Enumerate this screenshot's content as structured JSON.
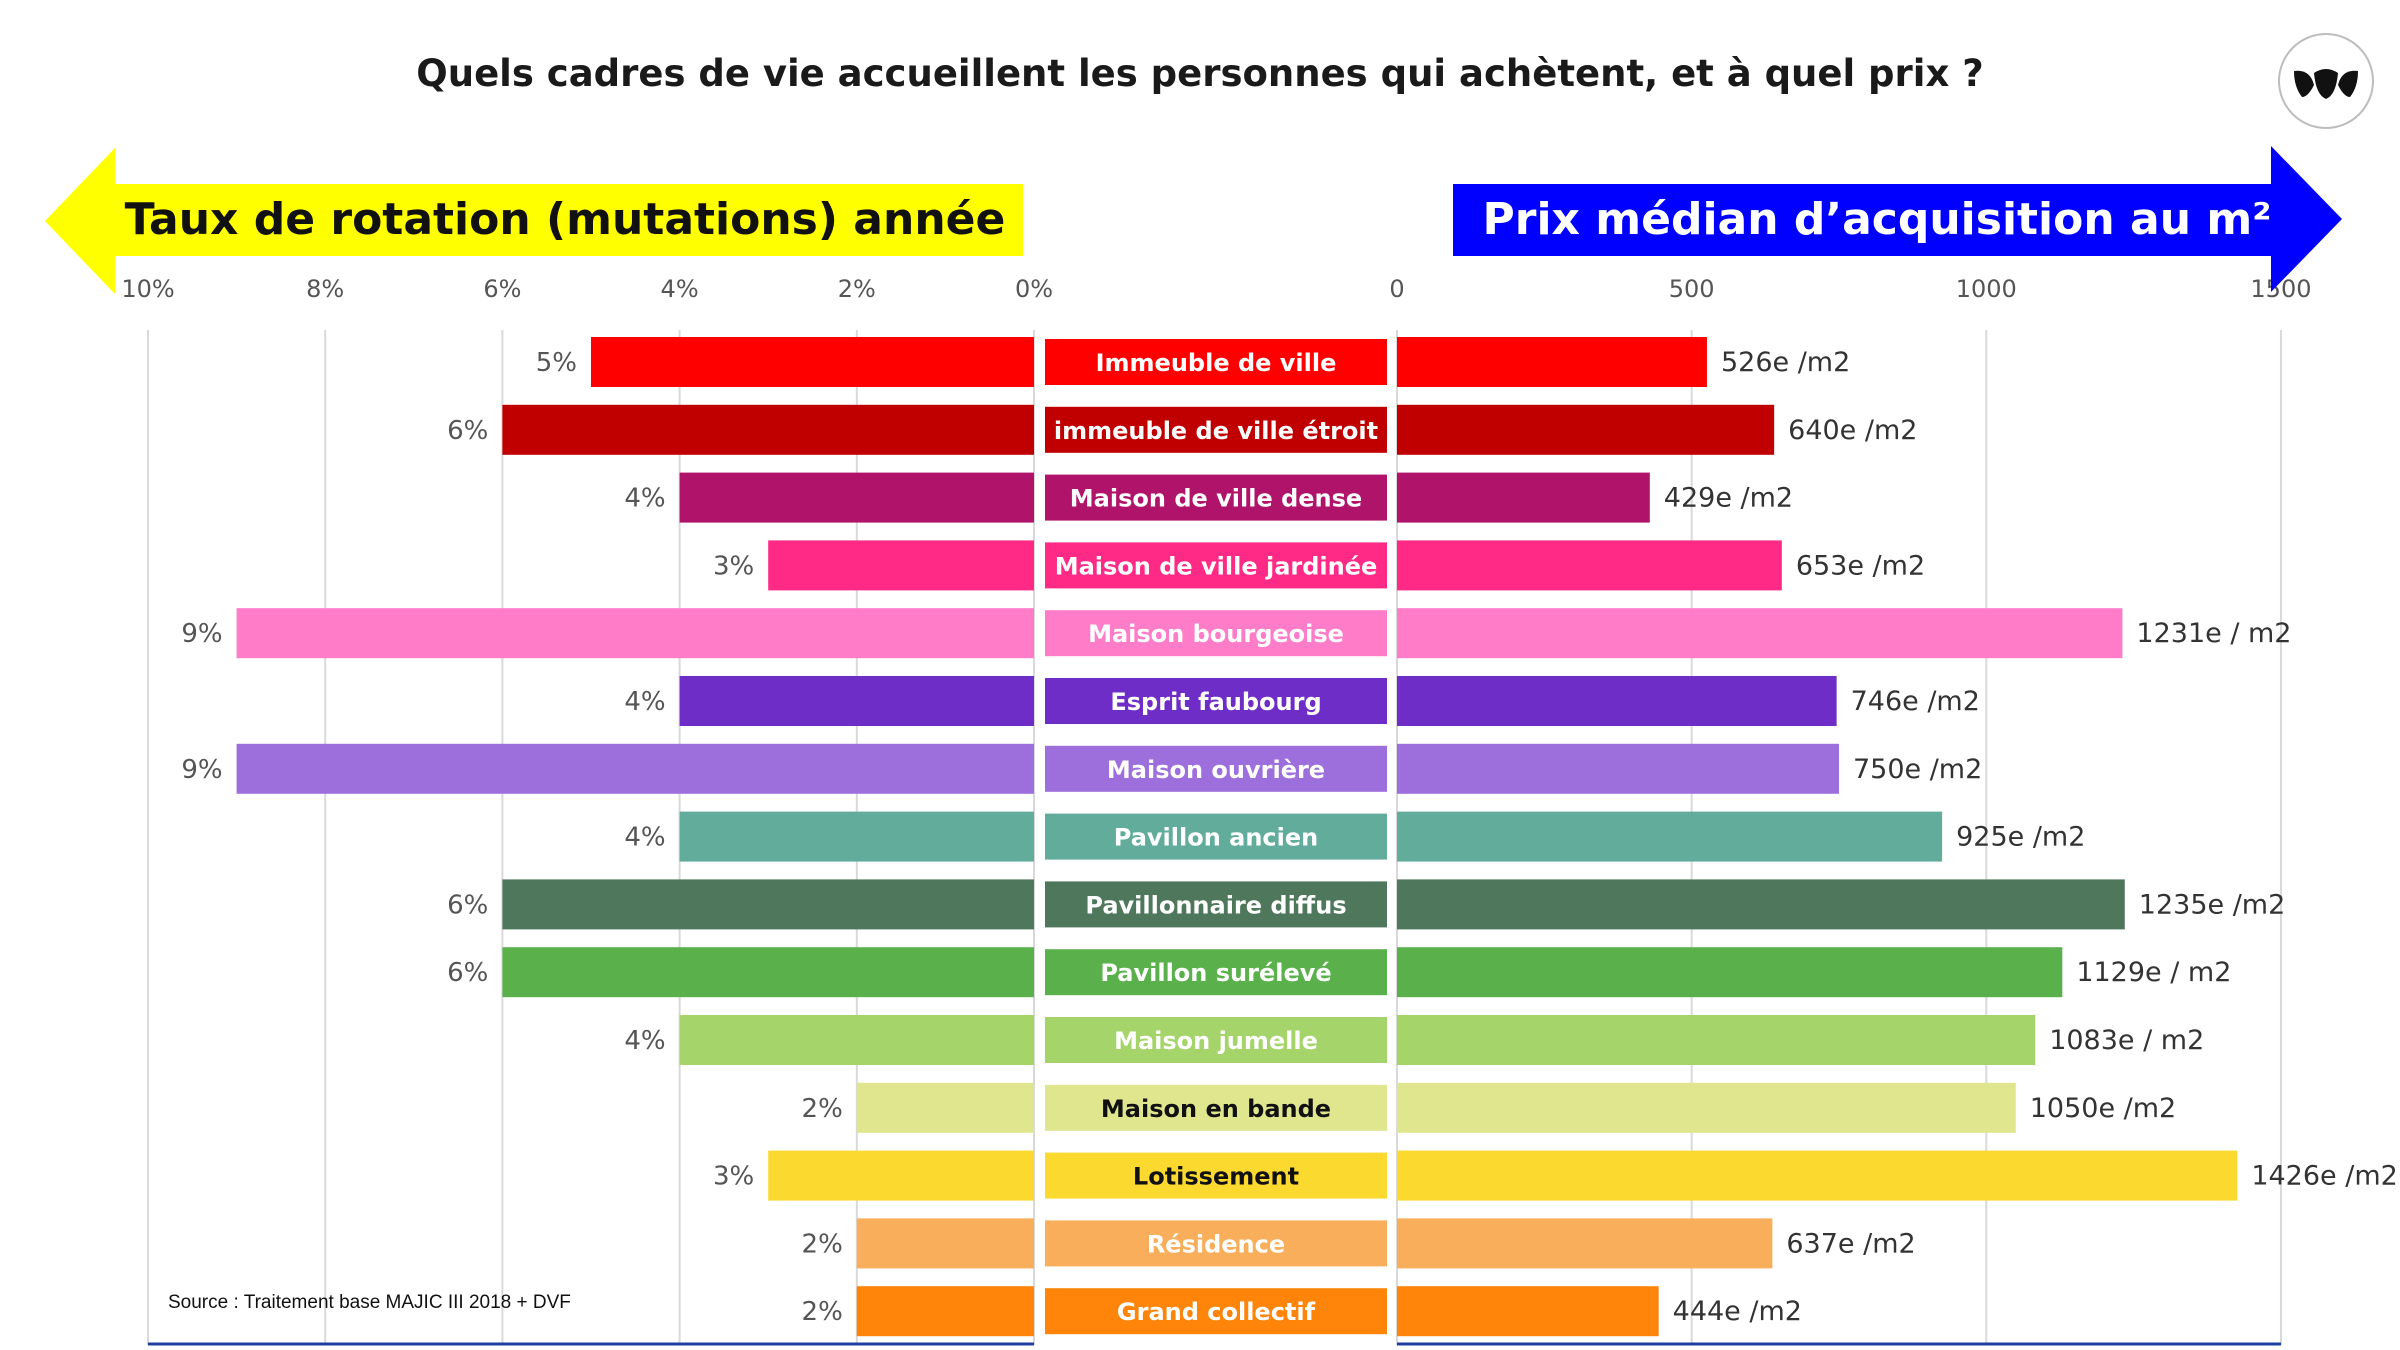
{
  "title": "Quels cadres de vie accueillent les personnes qui achètent, et à quel prix ?",
  "source": "Source : Traitement base MAJIC III 2018 + DVF",
  "logo_icon": "three-leaf-logo-icon",
  "chart_data": {
    "type": "bar",
    "left_panel": {
      "header": "Taux de rotation (mutations) année",
      "header_color": "#FFFF00",
      "direction": "leftward",
      "ticks": [
        "10%",
        "8%",
        "6%",
        "4%",
        "2%",
        "0%"
      ],
      "xlim": [
        0,
        10
      ]
    },
    "right_panel": {
      "header": "Prix médian d’acquisition au m²",
      "header_color": "#0000FF",
      "ticks": [
        "0",
        "500",
        "1000",
        "1500"
      ],
      "xlim": [
        0,
        1500
      ]
    },
    "categories": [
      {
        "name": "Immeuble de ville",
        "color": "#FF0000",
        "label_text_color": "#FFFFFF",
        "rotation": 5,
        "rotation_label": "5%",
        "price": 526,
        "price_label": "526e /m2"
      },
      {
        "name": "immeuble de ville étroit",
        "color": "#C00000",
        "label_text_color": "#FFFFFF",
        "rotation": 6,
        "rotation_label": "6%",
        "price": 640,
        "price_label": "640e /m2"
      },
      {
        "name": "Maison de ville dense",
        "color": "#B0146A",
        "label_text_color": "#FFFFFF",
        "rotation": 4,
        "rotation_label": "4%",
        "price": 429,
        "price_label": "429e /m2"
      },
      {
        "name": "Maison de ville jardinée",
        "color": "#FF2A85",
        "label_text_color": "#FFFFFF",
        "rotation": 3,
        "rotation_label": "3%",
        "price": 653,
        "price_label": "653e /m2"
      },
      {
        "name": "Maison bourgeoise",
        "color": "#FF7CC8",
        "label_text_color": "#FFFFFF",
        "rotation": 9,
        "rotation_label": "9%",
        "price": 1231,
        "price_label": "1231e / m2"
      },
      {
        "name": "Esprit faubourg",
        "color": "#6F2DC8",
        "label_text_color": "#FFFFFF",
        "rotation": 4,
        "rotation_label": "4%",
        "price": 746,
        "price_label": "746e /m2"
      },
      {
        "name": "Maison ouvrière",
        "color": "#9C6FDC",
        "label_text_color": "#FFFFFF",
        "rotation": 9,
        "rotation_label": "9%",
        "price": 750,
        "price_label": "750e /m2"
      },
      {
        "name": "Pavillon ancien",
        "color": "#62AC9C",
        "label_text_color": "#FFFFFF",
        "rotation": 4,
        "rotation_label": "4%",
        "price": 925,
        "price_label": "925e /m2"
      },
      {
        "name": "Pavillonnaire diffus",
        "color": "#4E775C",
        "label_text_color": "#FFFFFF",
        "rotation": 6,
        "rotation_label": "6%",
        "price": 1235,
        "price_label": "1235e /m2"
      },
      {
        "name": "Pavillon surélevé",
        "color": "#5AB14C",
        "label_text_color": "#FFFFFF",
        "rotation": 6,
        "rotation_label": "6%",
        "price": 1129,
        "price_label": "1129e / m2"
      },
      {
        "name": "Maison jumelle",
        "color": "#A5D46A",
        "label_text_color": "#FFFFFF",
        "rotation": 4,
        "rotation_label": "4%",
        "price": 1083,
        "price_label": "1083e / m2"
      },
      {
        "name": "Maison en bande",
        "color": "#E0E68E",
        "label_text_color": "#111111",
        "rotation": 2,
        "rotation_label": "2%",
        "price": 1050,
        "price_label": "1050e /m2"
      },
      {
        "name": "Lotissement",
        "color": "#FCD92E",
        "label_text_color": "#111111",
        "rotation": 3,
        "rotation_label": "3%",
        "price": 1426,
        "price_label": "1426e /m2"
      },
      {
        "name": "Résidence",
        "color": "#F8AE5A",
        "label_text_color": "#FFFFFF",
        "rotation": 2,
        "rotation_label": "2%",
        "price": 637,
        "price_label": "637e /m2"
      },
      {
        "name": "Grand collectif",
        "color": "#FF850A",
        "label_text_color": "#FFFFFF",
        "rotation": 2,
        "rotation_label": "2%",
        "price": 444,
        "price_label": "444e /m2"
      }
    ]
  }
}
